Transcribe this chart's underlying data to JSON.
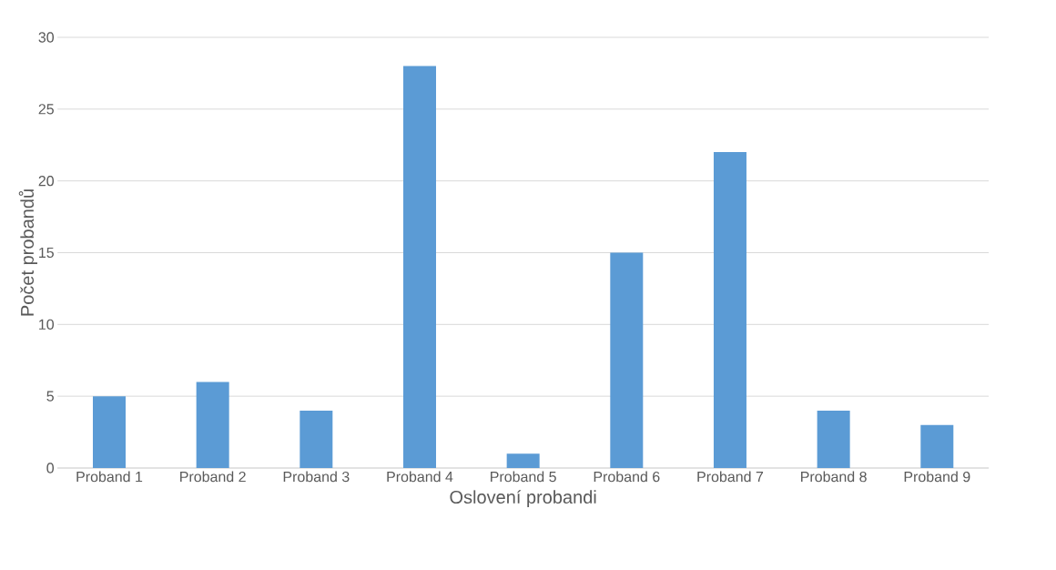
{
  "chart_data": {
    "type": "bar",
    "xlabel": "Oslovení probandi",
    "ylabel": "Počet probandů",
    "categories": [
      "Proband 1",
      "Proband 2",
      "Proband 3",
      "Proband 4",
      "Proband 5",
      "Proband 6",
      "Proband 7",
      "Proband 8",
      "Proband 9"
    ],
    "values": [
      5,
      6,
      4,
      28,
      1,
      15,
      22,
      4,
      3
    ],
    "color": "#5b9bd5",
    "ylim": [
      0,
      30
    ],
    "yticks": [
      0,
      5,
      10,
      15,
      20,
      25,
      30
    ],
    "grid": "y"
  }
}
